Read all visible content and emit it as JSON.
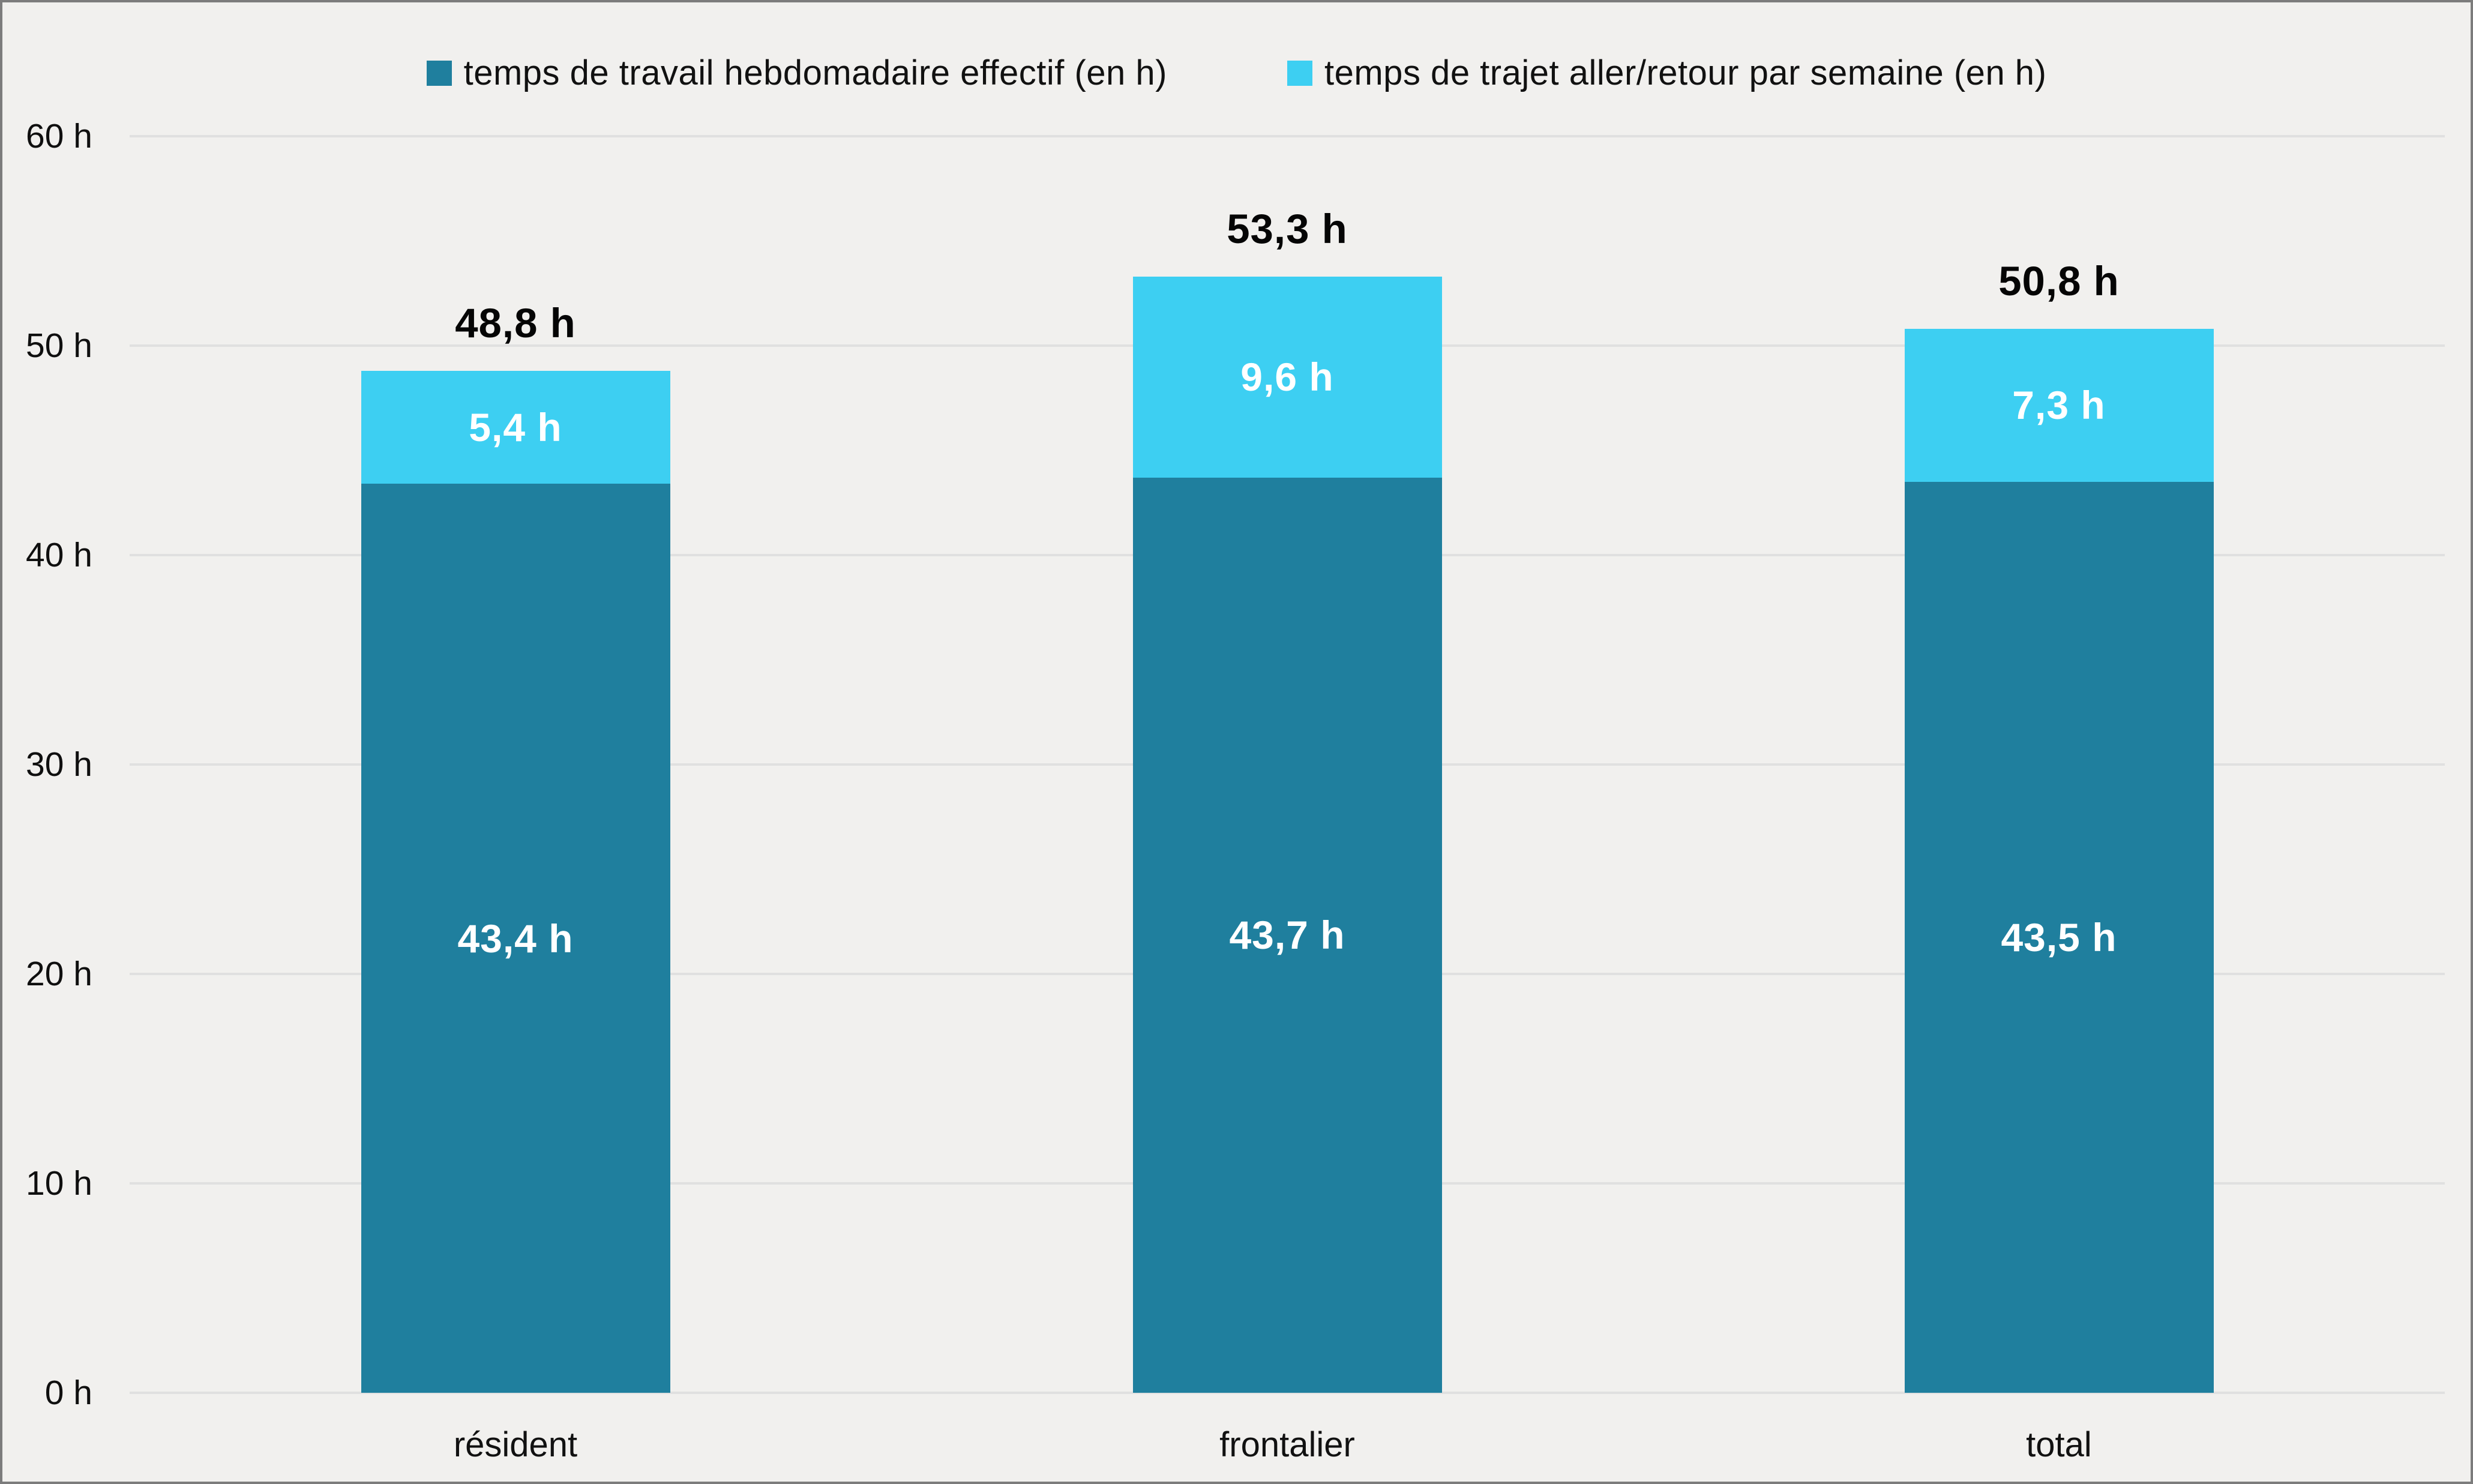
{
  "colors": {
    "background": "#f1f0ee",
    "frame_border": "#7c7c7c",
    "gridline": "#e0e0e0",
    "axis_text": "#0f0f0f",
    "total_label_text": "#050505",
    "segment_label_text": "#ffffff",
    "series_travail": "#1f7f9e",
    "series_trajet": "#3dcff2"
  },
  "legend": {
    "items": [
      {
        "label": "temps de travail hebdomadaire effectif (en h)",
        "swatch_color": "#1f7f9e"
      },
      {
        "label": "temps de trajet aller/retour par semaine (en h)",
        "swatch_color": "#3dcff2"
      }
    ]
  },
  "chart_data": {
    "type": "bar",
    "stacked": true,
    "categories": [
      "résident",
      "frontalier",
      "total"
    ],
    "series": [
      {
        "name": "temps de travail hebdomadaire effectif (en h)",
        "color": "#1f7f9e",
        "values": [
          43.4,
          43.7,
          43.5
        ],
        "value_labels": [
          "43,4 h",
          "43,7 h",
          "43,5 h"
        ]
      },
      {
        "name": "temps de trajet aller/retour par semaine (en h)",
        "color": "#3dcff2",
        "values": [
          5.4,
          9.6,
          7.3
        ],
        "value_labels": [
          "5,4 h",
          "9,6 h",
          "7,3 h"
        ]
      }
    ],
    "totals": {
      "values": [
        48.8,
        53.3,
        50.8
      ],
      "labels": [
        "48,8 h",
        "53,3 h",
        "50,8 h"
      ]
    },
    "y_axis": {
      "min": 0,
      "max": 60,
      "step": 10,
      "tick_labels": [
        "0 h",
        "10 h",
        "20 h",
        "30 h",
        "40 h",
        "50 h",
        "60 h"
      ]
    },
    "grid": true,
    "legend_position": "top",
    "xlabel": "",
    "ylabel": ""
  }
}
